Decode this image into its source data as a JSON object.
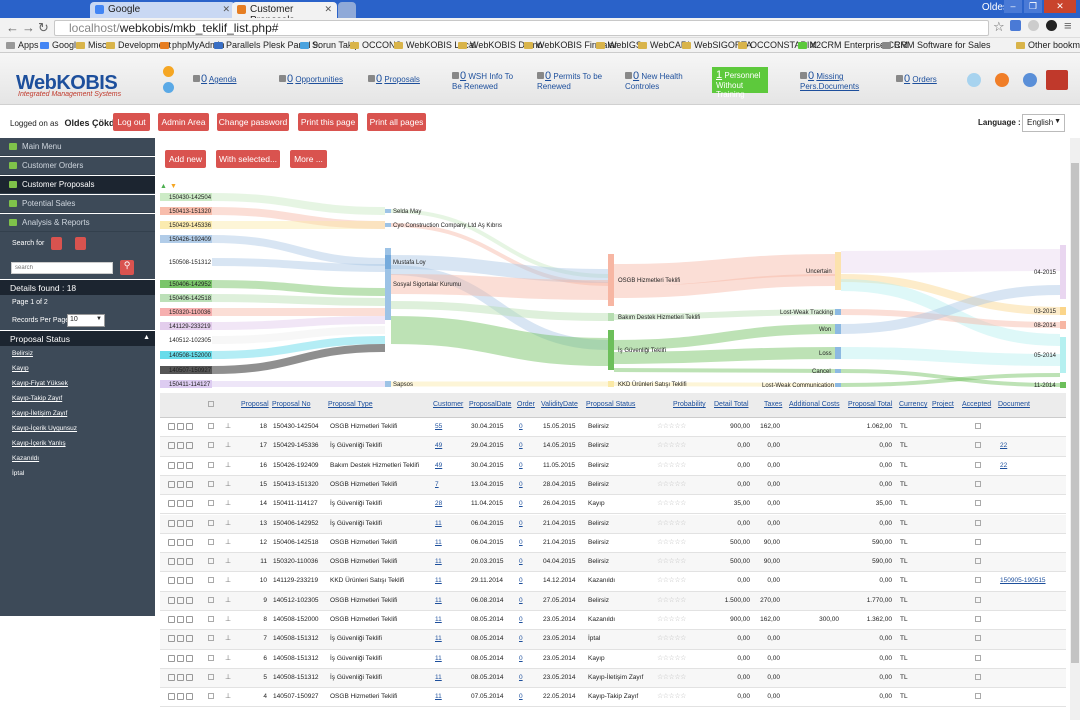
{
  "browser": {
    "tabs": [
      {
        "label": "Google"
      },
      {
        "label": "Customer Proposals"
      }
    ],
    "user": "Oldes",
    "url_prefix": "localhost/",
    "url_rest": "webkobis/mkb_teklif_list.php#",
    "bookmarks": [
      "Apps",
      "Google",
      "Misc",
      "Development",
      "phpMyAdmin",
      "Parallels Plesk Panel 9.",
      "Sorun Takip",
      "OCCONS",
      "WebKOBIS Local",
      "WebKOBIS Demo",
      "WebKOBIS Firmalar",
      "WebIGS",
      "WebCARI",
      "WebSIGORTA",
      "OCCONSTARIM",
      "X2CRM Enterprise CRM",
      "CRM Software for Sales",
      "Other bookmarks"
    ]
  },
  "header": {
    "logo": "WebKOBIS",
    "logo_sub": "Integrated Management Systems",
    "items": [
      {
        "count": "0",
        "label": "Agenda"
      },
      {
        "count": "0",
        "label": "Opportunities"
      },
      {
        "count": "0",
        "label": "Proposals"
      },
      {
        "count": "0",
        "label": "WSH Info To Be Renewed"
      },
      {
        "count": "0",
        "label": "Permits To be Renewed"
      },
      {
        "count": "0",
        "label": "New Health Controles"
      },
      {
        "count": "1",
        "label": "Personnel Without Training"
      },
      {
        "count": "0",
        "label": "Missing Pers.Documents"
      },
      {
        "count": "0",
        "label": "Orders"
      }
    ]
  },
  "loggedbar": {
    "logged_as": "Logged on as",
    "user": "Oldes Çökdü",
    "buttons": [
      "Log out",
      "Admin Area",
      "Change password",
      "Print this page",
      "Print all pages"
    ],
    "language_label": "Language :",
    "language": "English"
  },
  "sidebar": {
    "menu": [
      "Main Menu",
      "Customer Orders",
      "Customer Proposals",
      "Potential Sales",
      "Analysis & Reports"
    ],
    "search_label": "Search for",
    "search_placeholder": "search",
    "details_found": "Details found : 18",
    "page_of": "Page 1 of 2",
    "records_per_page": "Records Per Page",
    "rpp_value": "10",
    "status_header": "Proposal Status",
    "statuses": [
      "Belirsiz",
      "Kayıp",
      "Kayıp-Fiyat Yüksek",
      "Kayıp-Takip Zayıf",
      "Kayıp-İletişim Zayıf",
      "Kayıp-İçerik Uygunsuz",
      "Kayıp-İçerik Yanlış",
      "Kazanıldı",
      "İptal"
    ]
  },
  "actions": {
    "add_new": "Add new",
    "with_selected": "With selected...",
    "more": "More ..."
  },
  "sankey": {
    "left_nodes": [
      "150430-142504",
      "150413-151320",
      "150429-145336",
      "150426-192409",
      "150508-151312",
      "150406-142952",
      "150406-142518",
      "150320-110036",
      "141129-233219",
      "140512-102305",
      "140508-152000",
      "140507-150927",
      "150411-114127"
    ],
    "mid1_nodes": [
      "Selda May",
      "Cyo Construction Company Ltd Aş Kıbrıs",
      "Mustafa Loy",
      "Sosyal Sigortalar Kurumu",
      "Sapsos"
    ],
    "mid2_nodes": [
      "OSGB Hizmetleri Teklifi",
      "Bakım Destek Hizmetleri Teklifi",
      "İş Güvenliği Teklifi",
      "KKD Ürünleri Satışı Teklifi"
    ],
    "status_nodes": [
      "Uncertain",
      "Lost-Weak Tracking",
      "Won",
      "Loss",
      "Cancel",
      "Lost-Weak Communication"
    ],
    "right_nodes": [
      "04-2015",
      "03-2015",
      "08-2014",
      "05-2014",
      "11-2014"
    ]
  },
  "table": {
    "headers": [
      "Proposal",
      "Proposal No",
      "Proposal Type",
      "Customer",
      "ProposalDate",
      "Order",
      "ValidityDate",
      "Proposal Status",
      "Probability",
      "Detail Total",
      "Taxes",
      "Additional Costs",
      "Proposal Total",
      "Currency",
      "Project",
      "Accepted",
      "Document"
    ],
    "rows": [
      {
        "id": "18",
        "no": "150430-142504",
        "type": "OSGB Hizmetleri Teklifi",
        "customer": "55",
        "date": "30.04.2015",
        "order": "0",
        "validity": "15.05.2015",
        "status": "Belirsiz",
        "detail": "900,00",
        "taxes": "162,00",
        "additional": "",
        "total": "1.062,00",
        "currency": "TL",
        "document": ""
      },
      {
        "id": "17",
        "no": "150429-145336",
        "type": "İş Güvenliği Teklifi",
        "customer": "49",
        "date": "29.04.2015",
        "order": "0",
        "validity": "14.05.2015",
        "status": "Belirsiz",
        "detail": "0,00",
        "taxes": "0,00",
        "additional": "",
        "total": "0,00",
        "currency": "TL",
        "document": "22"
      },
      {
        "id": "16",
        "no": "150426-192409",
        "type": "Bakım Destek Hizmetleri Teklifi",
        "customer": "49",
        "date": "30.04.2015",
        "order": "0",
        "validity": "11.05.2015",
        "status": "Belirsiz",
        "detail": "0,00",
        "taxes": "0,00",
        "additional": "",
        "total": "0,00",
        "currency": "TL",
        "document": "22"
      },
      {
        "id": "15",
        "no": "150413-151320",
        "type": "OSGB Hizmetleri Teklifi",
        "customer": "7",
        "date": "13.04.2015",
        "order": "0",
        "validity": "28.04.2015",
        "status": "Belirsiz",
        "detail": "0,00",
        "taxes": "0,00",
        "additional": "",
        "total": "0,00",
        "currency": "TL",
        "document": ""
      },
      {
        "id": "14",
        "no": "150411-114127",
        "type": "İş Güvenliği Teklifi",
        "customer": "28",
        "date": "11.04.2015",
        "order": "0",
        "validity": "26.04.2015",
        "status": "Kayıp",
        "detail": "35,00",
        "taxes": "0,00",
        "additional": "",
        "total": "35,00",
        "currency": "TL",
        "document": ""
      },
      {
        "id": "13",
        "no": "150406-142952",
        "type": "İş Güvenliği Teklifi",
        "customer": "11",
        "date": "06.04.2015",
        "order": "0",
        "validity": "21.04.2015",
        "status": "Belirsiz",
        "detail": "0,00",
        "taxes": "0,00",
        "additional": "",
        "total": "0,00",
        "currency": "TL",
        "document": ""
      },
      {
        "id": "12",
        "no": "150406-142518",
        "type": "OSGB Hizmetleri Teklifi",
        "customer": "11",
        "date": "06.04.2015",
        "order": "0",
        "validity": "21.04.2015",
        "status": "Belirsiz",
        "detail": "500,00",
        "taxes": "90,00",
        "additional": "",
        "total": "590,00",
        "currency": "TL",
        "document": ""
      },
      {
        "id": "11",
        "no": "150320-110036",
        "type": "OSGB Hizmetleri Teklifi",
        "customer": "11",
        "date": "20.03.2015",
        "order": "0",
        "validity": "04.04.2015",
        "status": "Belirsiz",
        "detail": "500,00",
        "taxes": "90,00",
        "additional": "",
        "total": "590,00",
        "currency": "TL",
        "document": ""
      },
      {
        "id": "10",
        "no": "141129-233219",
        "type": "KKD Ürünleri Satışı Teklifi",
        "customer": "11",
        "date": "29.11.2014",
        "order": "0",
        "validity": "14.12.2014",
        "status": "Kazanıldı",
        "detail": "0,00",
        "taxes": "0,00",
        "additional": "",
        "total": "0,00",
        "currency": "TL",
        "document": "150905-190515"
      },
      {
        "id": "9",
        "no": "140512-102305",
        "type": "OSGB Hizmetleri Teklifi",
        "customer": "11",
        "date": "06.08.2014",
        "order": "0",
        "validity": "27.05.2014",
        "status": "Belirsiz",
        "detail": "1.500,00",
        "taxes": "270,00",
        "additional": "",
        "total": "1.770,00",
        "currency": "TL",
        "document": ""
      },
      {
        "id": "8",
        "no": "140508-152000",
        "type": "OSGB Hizmetleri Teklifi",
        "customer": "11",
        "date": "08.05.2014",
        "order": "0",
        "validity": "23.05.2014",
        "status": "Kazanıldı",
        "detail": "900,00",
        "taxes": "162,00",
        "additional": "300,00",
        "total": "1.362,00",
        "currency": "TL",
        "document": ""
      },
      {
        "id": "7",
        "no": "140508-151312",
        "type": "İş Güvenliği Teklifi",
        "customer": "11",
        "date": "08.05.2014",
        "order": "0",
        "validity": "23.05.2014",
        "status": "İptal",
        "detail": "0,00",
        "taxes": "0,00",
        "additional": "",
        "total": "0,00",
        "currency": "TL",
        "document": ""
      },
      {
        "id": "6",
        "no": "140508-151312",
        "type": "İş Güvenliği Teklifi",
        "customer": "11",
        "date": "08.05.2014",
        "order": "0",
        "validity": "23.05.2014",
        "status": "Kayıp",
        "detail": "0,00",
        "taxes": "0,00",
        "additional": "",
        "total": "0,00",
        "currency": "TL",
        "document": ""
      },
      {
        "id": "5",
        "no": "140508-151312",
        "type": "İş Güvenliği Teklifi",
        "customer": "11",
        "date": "08.05.2014",
        "order": "0",
        "validity": "23.05.2014",
        "status": "Kayıp-İletişim Zayıf",
        "detail": "0,00",
        "taxes": "0,00",
        "additional": "",
        "total": "0,00",
        "currency": "TL",
        "document": ""
      },
      {
        "id": "4",
        "no": "140507-150927",
        "type": "OSGB Hizmetleri Teklifi",
        "customer": "11",
        "date": "07.05.2014",
        "order": "0",
        "validity": "22.05.2014",
        "status": "Kayıp-Takip Zayıf",
        "detail": "0,00",
        "taxes": "0,00",
        "additional": "",
        "total": "0,00",
        "currency": "TL",
        "document": ""
      }
    ]
  }
}
